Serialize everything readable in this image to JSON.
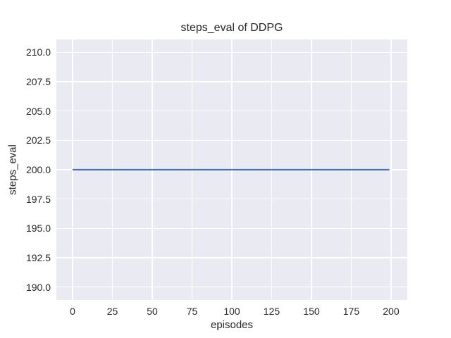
{
  "chart_data": {
    "type": "line",
    "title": "steps_eval of DDPG",
    "xlabel": "episodes",
    "ylabel": "steps_eval",
    "xlim": [
      -10.2,
      210.2
    ],
    "ylim": [
      188.9,
      211.1
    ],
    "x_ticks": [
      0,
      25,
      50,
      75,
      100,
      125,
      150,
      175,
      200
    ],
    "x_tick_labels": [
      "0",
      "25",
      "50",
      "75",
      "100",
      "125",
      "150",
      "175",
      "200"
    ],
    "y_ticks": [
      190.0,
      192.5,
      195.0,
      197.5,
      200.0,
      202.5,
      205.0,
      207.5,
      210.0
    ],
    "y_tick_labels": [
      "190.0",
      "192.5",
      "195.0",
      "197.5",
      "200.0",
      "202.5",
      "205.0",
      "207.5",
      "210.0"
    ],
    "grid": true,
    "legend": null,
    "style": {
      "figure_background": "#ffffff",
      "axes_background": "#eaeaf2",
      "grid_color": "#ffffff",
      "text_color": "#262626",
      "line_color": "#4c72b0",
      "line_width": 2.2
    },
    "series": [
      {
        "name": "steps_eval",
        "color": "#4c72b0",
        "x": [
          0,
          199
        ],
        "y": [
          200,
          200
        ]
      }
    ]
  }
}
